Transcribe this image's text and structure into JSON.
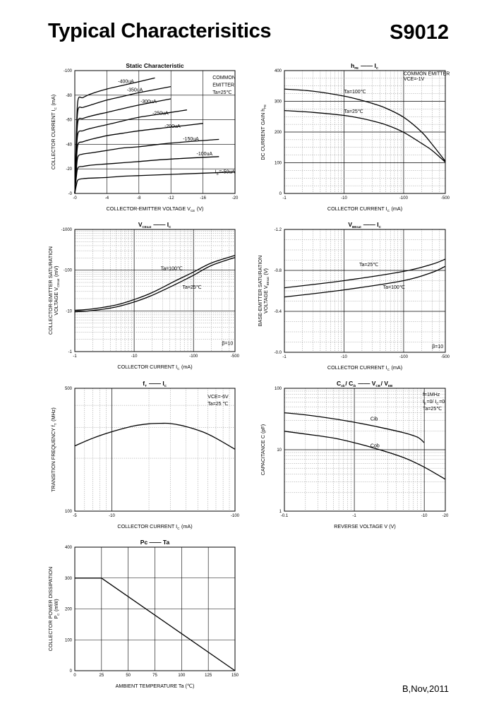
{
  "header": {
    "title": "Typical Characterisitics",
    "part_number": "S9012"
  },
  "footer": {
    "revision": "B,Nov,2011"
  },
  "colors": {
    "ink": "#000000",
    "grid": "#808080",
    "background": "#ffffff"
  },
  "chart_data": [
    {
      "id": "static",
      "type": "line",
      "title": "Static Characteristic",
      "title_parts": [],
      "xlabel": "COLLECTOR-EMITTER VOLTAGE  V",
      "xlabel_sub": "CE",
      "xlabel_unit": "(V)",
      "ylabel": "COLLECTOR CURRENT   I",
      "ylabel_sub": "C",
      "ylabel_unit": "(mA)",
      "xlim": [
        0,
        -20
      ],
      "ylim": [
        0,
        -100
      ],
      "xscale": "linear",
      "yscale": "linear",
      "x_ticks": [
        0,
        -4,
        -8,
        -12,
        -16,
        -20
      ],
      "x_tick_labels": [
        "-0",
        "-4",
        "-8",
        "-12",
        "-16",
        "-20"
      ],
      "y_ticks": [
        0,
        -20,
        -40,
        -60,
        -80,
        -100
      ],
      "y_tick_labels": [
        "-0",
        "-20",
        "-40",
        "-60",
        "-80",
        "-100"
      ],
      "grid": "major",
      "annotations": [
        {
          "text": "COMMON",
          "x": -17.2,
          "y": -93
        },
        {
          "text": "EMITTER",
          "x": -17.2,
          "y": -87
        },
        {
          "text": "Ta=25℃",
          "x": -17.2,
          "y": -81
        }
      ],
      "series": [
        {
          "name": "-400uA",
          "x": [
            0,
            -0.2,
            -0.4,
            -1,
            -2,
            -4,
            -6,
            -8,
            -10
          ],
          "y": [
            0,
            -50,
            -76,
            -78,
            -81,
            -85,
            -88,
            -91,
            -94
          ],
          "label": {
            "text": "-400uA",
            "x": -5.4,
            "y": -90
          }
        },
        {
          "name": "-350uA",
          "x": [
            0,
            -0.2,
            -0.4,
            -1,
            -2,
            -4,
            -6,
            -8,
            -12
          ],
          "y": [
            0,
            -45,
            -68,
            -70,
            -72,
            -76,
            -79,
            -82,
            -87
          ],
          "label": {
            "text": "-350uA",
            "x": -6.5,
            "y": -83
          }
        },
        {
          "name": "-300uA",
          "x": [
            0,
            -0.2,
            -0.4,
            -1,
            -2,
            -4,
            -6,
            -8,
            -12
          ],
          "y": [
            0,
            -38,
            -59,
            -61,
            -63,
            -66,
            -69,
            -72,
            -77
          ],
          "label": {
            "text": "-300uA",
            "x": -8.2,
            "y": -73.5
          }
        },
        {
          "name": "-250uA",
          "x": [
            0,
            -0.2,
            -0.4,
            -1,
            -2,
            -4,
            -6,
            -8,
            -12,
            -14
          ],
          "y": [
            0,
            -33,
            -49,
            -51,
            -53,
            -56,
            -59,
            -62,
            -66,
            -68
          ],
          "label": {
            "text": "-250uA",
            "x": -9.7,
            "y": -64
          }
        },
        {
          "name": "-200uA",
          "x": [
            0,
            -0.2,
            -0.4,
            -1,
            -2,
            -4,
            -6,
            -8,
            -12,
            -16
          ],
          "y": [
            0,
            -26,
            -40,
            -42,
            -44,
            -47,
            -49,
            -51,
            -54,
            -57
          ],
          "label": {
            "text": "-200uA",
            "x": -11.2,
            "y": -53.5
          }
        },
        {
          "name": "-150uA",
          "x": [
            0,
            -0.2,
            -0.4,
            -1,
            -2,
            -4,
            -6,
            -8,
            -12,
            -18
          ],
          "y": [
            0,
            -20,
            -30,
            -32,
            -33,
            -35,
            -37,
            -38,
            -41,
            -44
          ],
          "label": {
            "text": "-150uA",
            "x": -13.5,
            "y": -43
          }
        },
        {
          "name": "-100uA",
          "x": [
            0,
            -0.2,
            -0.4,
            -1,
            -2,
            -4,
            -6,
            -8,
            -12,
            -18
          ],
          "y": [
            0,
            -14,
            -21,
            -22,
            -23,
            -24,
            -25,
            -26,
            -28,
            -30
          ],
          "label": {
            "text": "-100uA",
            "x": -15.2,
            "y": -31
          }
        },
        {
          "name": "IB=-50uA",
          "x": [
            0,
            -0.2,
            -0.4,
            -1,
            -2,
            -4,
            -6,
            -8,
            -12,
            -20
          ],
          "y": [
            0,
            -7,
            -11,
            -12,
            -12.5,
            -13,
            -14,
            -14.5,
            -15.5,
            -17.5
          ],
          "label": {
            "text": "=-50uA",
            "prefix": "I",
            "prefix_sub": "B",
            "x": -17.5,
            "y": -16.5
          }
        }
      ]
    },
    {
      "id": "hfe",
      "type": "line",
      "title_parts": [
        {
          "t": "h",
          "s": "FE"
        },
        {
          "t": "  ——  "
        },
        {
          "t": "I",
          "s": "C"
        }
      ],
      "xlabel": "COLLECTOR CURRENT   I",
      "xlabel_sub": "C",
      "xlabel_unit": "(mA)",
      "ylabel": "DC CURRENT GAIN   h",
      "ylabel_sub": "FE",
      "ylabel_unit": "",
      "xlim": [
        1,
        500
      ],
      "ylim": [
        0,
        400
      ],
      "xscale": "log",
      "yscale": "linear",
      "x_ticks": [
        1,
        10,
        100,
        500
      ],
      "x_tick_labels": [
        "-1",
        "-10",
        "-100",
        "-500"
      ],
      "y_ticks": [
        0,
        100,
        200,
        300,
        400
      ],
      "y_tick_labels": [
        "0",
        "100",
        "200",
        "300",
        "400"
      ],
      "grid": "log",
      "annotations": [
        {
          "text": "COMMON EMITTER",
          "x": 100,
          "y": 385
        },
        {
          "text": "VCE=-1V",
          "x": 100,
          "y": 368
        }
      ],
      "series": [
        {
          "name": "Ta=100℃",
          "x": [
            1,
            3,
            10,
            20,
            30,
            50,
            100,
            200,
            300,
            500
          ],
          "y": [
            340,
            333,
            317,
            303,
            293,
            278,
            248,
            200,
            160,
            105
          ],
          "label": {
            "text": "Ta=100℃",
            "x": 10,
            "y": 327
          }
        },
        {
          "name": "Ta=25℃",
          "x": [
            1,
            3,
            10,
            20,
            30,
            50,
            100,
            200,
            300,
            500
          ],
          "y": [
            270,
            264,
            254,
            244,
            236,
            224,
            199,
            163,
            140,
            102
          ],
          "label": {
            "text": "Ta=25℃",
            "x": 10,
            "y": 262
          }
        }
      ]
    },
    {
      "id": "vcesat",
      "type": "line",
      "title_parts": [
        {
          "t": "V",
          "s": "CEsat"
        },
        {
          "t": "  ——  "
        },
        {
          "t": "I",
          "s": "C"
        }
      ],
      "xlabel": "COLLECTOR CURRENT   I",
      "xlabel_sub": "C",
      "xlabel_unit": "(mA)",
      "ylabel": "COLLECTOR-EMITTER SATURATION",
      "ylabel2": "VOLTAGE   V",
      "ylabel_sub": "CEsat",
      "ylabel_unit": "(mV)",
      "xlim": [
        1,
        500
      ],
      "ylim": [
        1,
        1000
      ],
      "xscale": "log",
      "yscale": "log",
      "x_ticks": [
        1,
        10,
        100,
        500
      ],
      "x_tick_labels": [
        "-1",
        "-10",
        "-100",
        "-500"
      ],
      "y_ticks": [
        1,
        10,
        100,
        1000
      ],
      "y_tick_labels": [
        "-1",
        "-10",
        "-100",
        "-1000"
      ],
      "grid": "log",
      "annotations": [
        {
          "text": "β=10",
          "x": 300,
          "y": 1.45
        }
      ],
      "series": [
        {
          "name": "Ta=100℃",
          "x": [
            1,
            2,
            5,
            10,
            20,
            50,
            100,
            200,
            500
          ],
          "y": [
            10.3,
            11.2,
            14,
            19,
            28,
            55,
            90,
            150,
            230
          ],
          "label": {
            "text": "Ta=100℃",
            "x": 28,
            "y": 100
          }
        },
        {
          "name": "Ta=25℃",
          "x": [
            1,
            2,
            5,
            10,
            20,
            50,
            100,
            200,
            500
          ],
          "y": [
            9.5,
            10.2,
            12.5,
            16.5,
            24,
            45,
            75,
            130,
            205
          ],
          "label": {
            "text": "Ta=25℃",
            "x": 65,
            "y": 35
          }
        }
      ]
    },
    {
      "id": "vbesat",
      "type": "line",
      "title_parts": [
        {
          "t": "V",
          "s": "BEsat"
        },
        {
          "t": "  ——  "
        },
        {
          "t": "I",
          "s": "C"
        }
      ],
      "xlabel": "COLLECTOR CURRENT   I",
      "xlabel_sub": "C",
      "xlabel_unit": "(mA)",
      "ylabel": "BASE-EMITTER SATURATION",
      "ylabel2": "VOLTAGE   V",
      "ylabel_sub": "BEsat",
      "ylabel_unit": "(V)",
      "xlim": [
        1,
        500
      ],
      "ylim": [
        0,
        1.2
      ],
      "xscale": "log",
      "yscale": "linear",
      "x_ticks": [
        1,
        10,
        100,
        500
      ],
      "x_tick_labels": [
        "-1",
        "-10",
        "-100",
        "-500"
      ],
      "y_ticks": [
        0,
        0.4,
        0.8,
        1.2
      ],
      "y_tick_labels": [
        "-0.0",
        "-0.4",
        "-0.8",
        "-1.2"
      ],
      "grid": "log",
      "annotations": [
        {
          "text": "β=10",
          "x": 300,
          "y": 0.04
        }
      ],
      "series": [
        {
          "name": "Ta=25℃",
          "x": [
            1,
            10,
            100,
            300,
            500
          ],
          "y": [
            0.63,
            0.7,
            0.79,
            0.86,
            0.91
          ],
          "label": {
            "text": "Ta=25℃",
            "x": 18,
            "y": 0.84
          }
        },
        {
          "name": "Ta=100℃",
          "x": [
            1,
            10,
            100,
            300,
            500
          ],
          "y": [
            0.54,
            0.61,
            0.7,
            0.78,
            0.84
          ],
          "label": {
            "text": "Ta=100℃",
            "x": 45,
            "y": 0.62
          }
        }
      ]
    },
    {
      "id": "ft",
      "type": "line",
      "title_parts": [
        {
          "t": "f",
          "s": "T"
        },
        {
          "t": "  ——  "
        },
        {
          "t": "I",
          "s": "C"
        }
      ],
      "xlabel": "COLLECTOR CURRENT   I",
      "xlabel_sub": "C",
      "xlabel_unit": "(mA)",
      "ylabel": "TRANSITION FREQUENCY   f",
      "ylabel_sub": "T",
      "ylabel_unit": "(MHz)",
      "xlim": [
        5,
        100
      ],
      "ylim": [
        100,
        500
      ],
      "xscale": "log",
      "yscale": "log",
      "x_ticks": [
        5,
        10,
        100
      ],
      "x_tick_labels": [
        "-5",
        "-10",
        "-100"
      ],
      "y_ticks": [
        100,
        500
      ],
      "y_tick_labels": [
        "100",
        "500"
      ],
      "grid": "log",
      "annotations": [
        {
          "text": "VCE=-6V",
          "x": 60,
          "y": 440
        },
        {
          "text": "Ta=25 ℃",
          "x": 60,
          "y": 400
        }
      ],
      "series": [
        {
          "name": "fT",
          "x": [
            5,
            7,
            10,
            15,
            20,
            25,
            30,
            40,
            55,
            70,
            100
          ],
          "y": [
            235,
            260,
            283,
            305,
            314,
            316,
            315,
            303,
            282,
            260,
            225
          ]
        }
      ]
    },
    {
      "id": "cap",
      "type": "line",
      "title_parts": [
        {
          "t": "C",
          "s": "ob"
        },
        {
          "t": "/ C"
        },
        {
          "t": "",
          "s": "ib"
        },
        {
          "t": "  ——  "
        },
        {
          "t": "V",
          "s": "CB"
        },
        {
          "t": "/ V"
        },
        {
          "t": "",
          "s": "EB"
        }
      ],
      "xlabel": "REVERSE VOLTAGE   V",
      "xlabel_sub": "",
      "xlabel_unit": "(V)",
      "ylabel": "CAPACITANCE   C",
      "ylabel_sub": "",
      "ylabel_unit": "(pF)",
      "xlim": [
        0.1,
        20
      ],
      "ylim": [
        1,
        100
      ],
      "xscale": "log",
      "yscale": "log",
      "x_ticks": [
        0.1,
        1,
        10,
        20
      ],
      "x_tick_labels": [
        "-0.1",
        "-1",
        "-10",
        "-20"
      ],
      "y_ticks": [
        1,
        10,
        100
      ],
      "y_tick_labels": [
        "1",
        "10",
        "100"
      ],
      "grid": "log",
      "annotations": [
        {
          "text": "f=1MHz",
          "x": 9.5,
          "y": 75
        },
        {
          "text": "=0/ I",
          "prefix": "I",
          "prefix_sub": "E",
          "suffix_sub": "C",
          "suffix": "=0",
          "x": 9.5,
          "y": 57
        },
        {
          "text": "Ta=25℃",
          "x": 9.5,
          "y": 44
        }
      ],
      "series": [
        {
          "name": "Cib",
          "x": [
            0.1,
            0.2,
            0.5,
            1,
            2,
            5,
            8,
            10
          ],
          "y": [
            40,
            37,
            32,
            28,
            24,
            19,
            16,
            13
          ],
          "label": {
            "text": "Cib",
            "x": 1.7,
            "y": 30
          }
        },
        {
          "name": "Cob",
          "x": [
            0.1,
            0.2,
            0.5,
            1,
            2,
            5,
            10,
            20
          ],
          "y": [
            20,
            18,
            15.5,
            13,
            10.5,
            7.5,
            5.2,
            3.3
          ],
          "label": {
            "text": "Cob",
            "x": 1.7,
            "y": 11
          }
        }
      ]
    },
    {
      "id": "pc",
      "type": "line",
      "title_parts": [
        {
          "t": "Pc"
        },
        {
          "t": "  ——  "
        },
        {
          "t": "Ta"
        }
      ],
      "xlabel": "AMBIENT TEMPERATURE   Ta",
      "xlabel_sub": "",
      "xlabel_unit": "(℃)",
      "ylabel": "COLLECTOR POWER DISSIPATION",
      "ylabel2": "P",
      "ylabel_sub": "C",
      "ylabel_unit": "(mW)",
      "xlim": [
        0,
        150
      ],
      "ylim": [
        0,
        400
      ],
      "xscale": "linear",
      "yscale": "linear",
      "x_ticks": [
        0,
        25,
        50,
        75,
        100,
        125,
        150
      ],
      "x_tick_labels": [
        "0",
        "25",
        "50",
        "75",
        "100",
        "125",
        "150"
      ],
      "y_ticks": [
        0,
        100,
        200,
        300,
        400
      ],
      "y_tick_labels": [
        "0",
        "100",
        "200",
        "300",
        "400"
      ],
      "grid": "major",
      "annotations": [],
      "series": [
        {
          "name": "Pc",
          "x": [
            0,
            25,
            150
          ],
          "y": [
            300,
            300,
            0
          ]
        }
      ]
    }
  ]
}
